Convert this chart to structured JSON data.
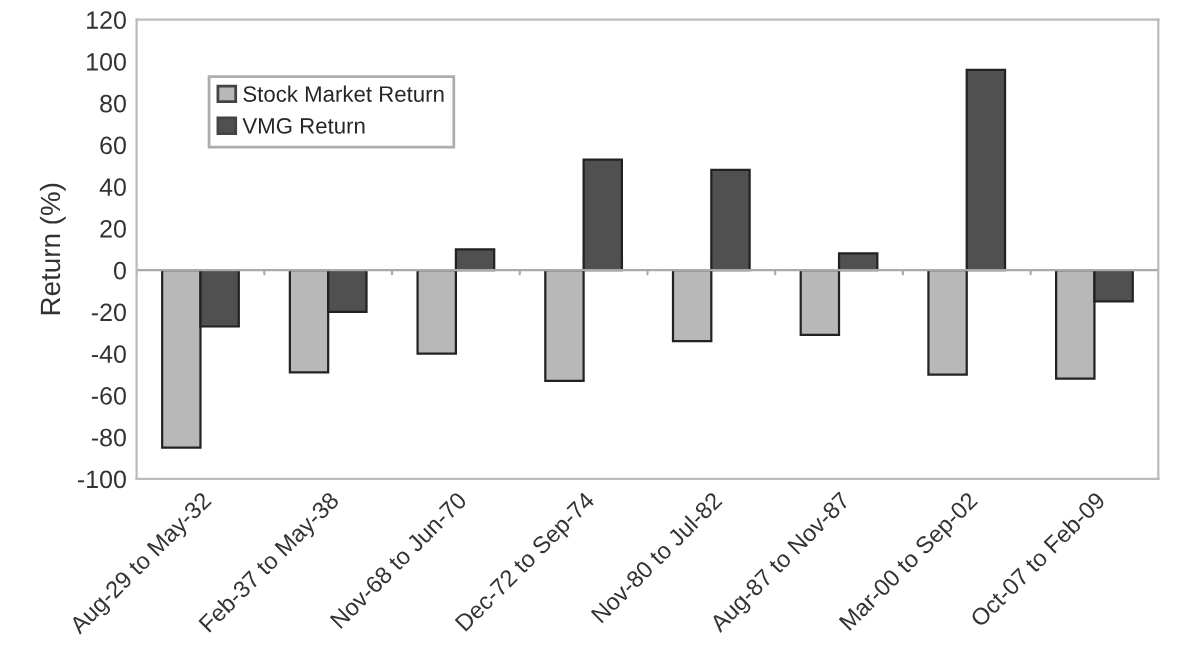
{
  "chart_data": {
    "type": "bar",
    "ylabel": "Return (%)",
    "categories": [
      "Aug-29 to May-32",
      "Feb-37 to May-38",
      "Nov-68 to Jun-70",
      "Dec-72 to Sep-74",
      "Nov-80 to Jul-82",
      "Aug-87 to Nov-87",
      "Mar-00 to Sep-02",
      "Oct-07 to Feb-09"
    ],
    "series": [
      {
        "name": "Stock Market Return",
        "color": "#b8b8b8",
        "values": [
          -85,
          -49,
          -40,
          -53,
          -34,
          -31,
          -50,
          -52
        ]
      },
      {
        "name": "VMG Return",
        "color": "#505050",
        "values": [
          -27,
          -20,
          10,
          53,
          48,
          8,
          96,
          -15
        ]
      }
    ],
    "ylim": [
      -100,
      120
    ],
    "yticks": [
      -100,
      -80,
      -60,
      -40,
      -20,
      0,
      20,
      40,
      60,
      80,
      100,
      120
    ],
    "ref_lines": [
      {
        "axis": "y",
        "value": 0,
        "color": "#aaaaaa"
      }
    ],
    "legend": "top left"
  }
}
